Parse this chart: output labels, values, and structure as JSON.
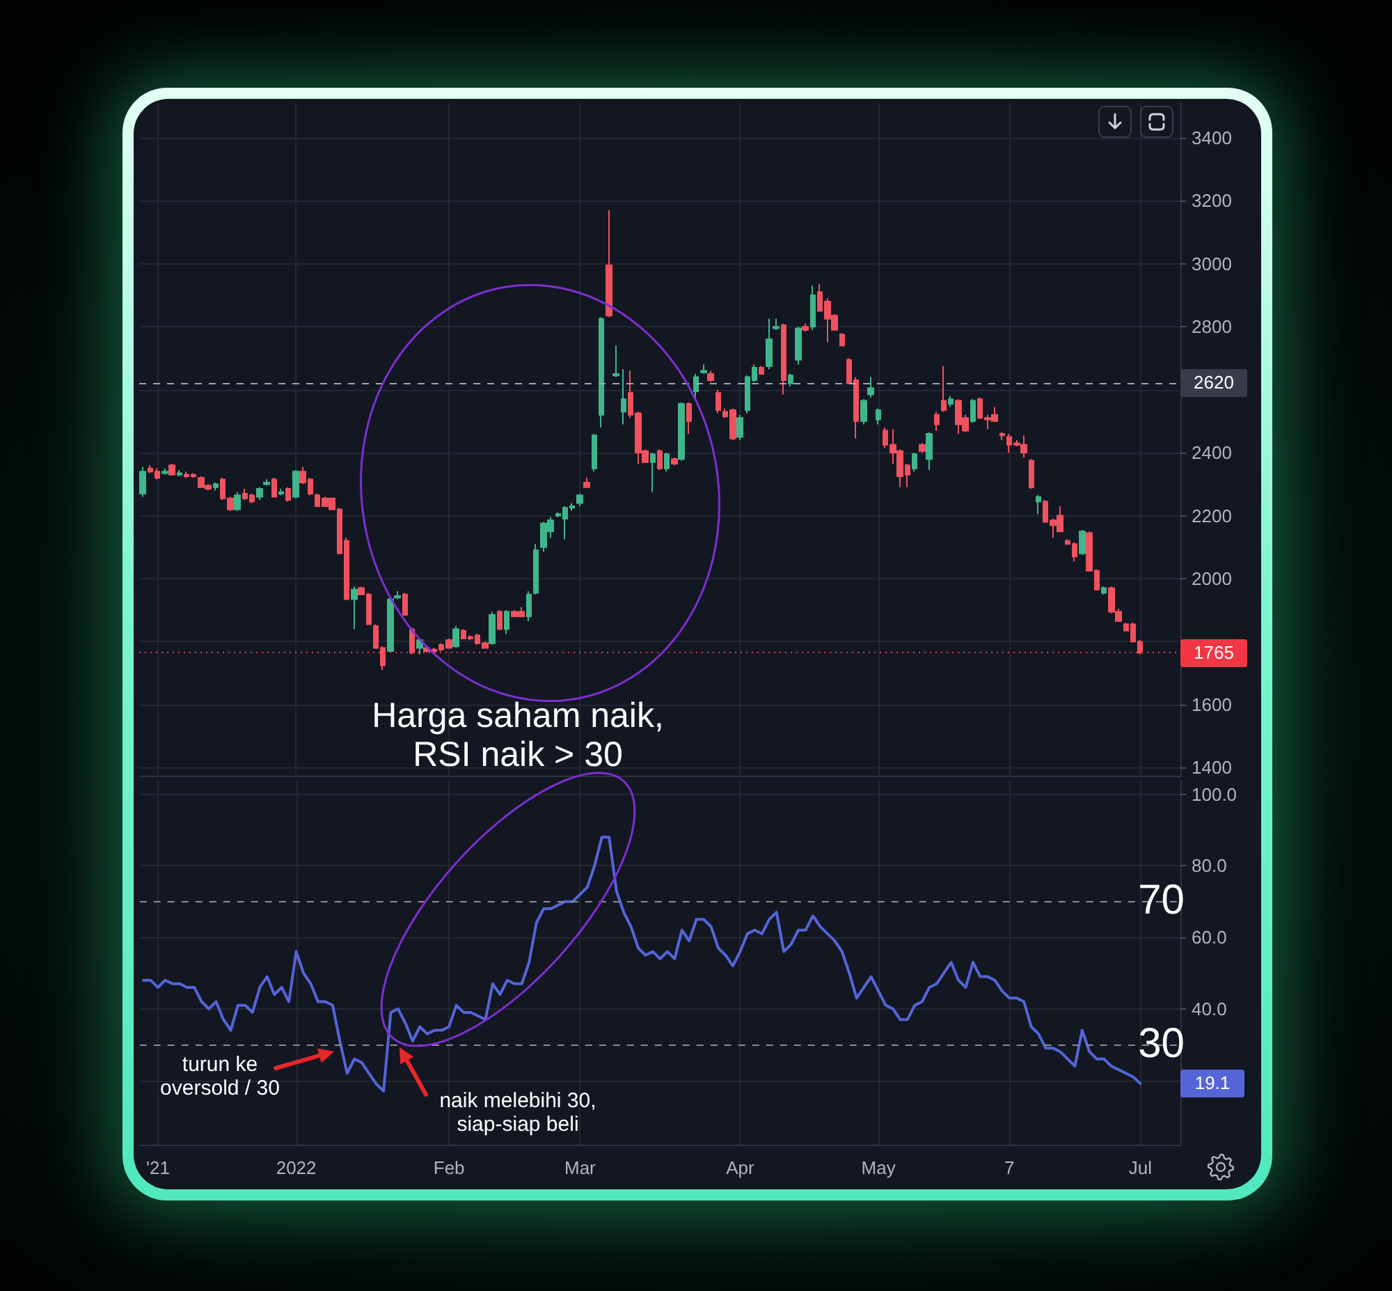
{
  "chart_data": [
    {
      "type": "candlestick",
      "categories": [
        null,
        null,
        null,
        null,
        null,
        null,
        null,
        null,
        null,
        null,
        null,
        null,
        null,
        null,
        null,
        null,
        null,
        null,
        null,
        null,
        null,
        null,
        null,
        null,
        null,
        null,
        null,
        null,
        null,
        null,
        null,
        null,
        null,
        null,
        null,
        null,
        null,
        null,
        null,
        null,
        null,
        null,
        null,
        null,
        null,
        null,
        null,
        null,
        null,
        null,
        null,
        null,
        null,
        null,
        null,
        null,
        null,
        null,
        null,
        null,
        null,
        null,
        null,
        null,
        null,
        null,
        null,
        null,
        null,
        null,
        null,
        null,
        null,
        null,
        null,
        null,
        null,
        null,
        null,
        null,
        null,
        null,
        null,
        null,
        null,
        null,
        null,
        null,
        null,
        null,
        null,
        null,
        null,
        null,
        null,
        null,
        null,
        null,
        null,
        null,
        null,
        null,
        null,
        null,
        null,
        null,
        null,
        null,
        null,
        null,
        null,
        null,
        null,
        null,
        null,
        null,
        null,
        null,
        null,
        null,
        null,
        null,
        null,
        null,
        null,
        null,
        null,
        null,
        null,
        null,
        null,
        null,
        null,
        null,
        null,
        null,
        null,
        null,
        null,
        null,
        null,
        null,
        null
      ],
      "ohlc": [
        [
          2270,
          2355,
          2260,
          2340
        ],
        [
          2350,
          2360,
          2335,
          2340
        ],
        [
          2340,
          2350,
          2315,
          2320
        ],
        [
          2335,
          2350,
          2330,
          2340
        ],
        [
          2360,
          2365,
          2330,
          2330
        ],
        [
          2330,
          2345,
          2325,
          2335
        ],
        [
          2330,
          2340,
          2320,
          2325
        ],
        [
          2330,
          2335,
          2320,
          2325
        ],
        [
          2320,
          2325,
          2290,
          2290
        ],
        [
          2295,
          2300,
          2280,
          2285
        ],
        [
          2290,
          2305,
          2280,
          2300
        ],
        [
          2315,
          2320,
          2250,
          2255
        ],
        [
          2255,
          2260,
          2215,
          2220
        ],
        [
          2220,
          2275,
          2215,
          2265
        ],
        [
          2270,
          2285,
          2250,
          2255
        ],
        [
          2265,
          2270,
          2240,
          2245
        ],
        [
          2260,
          2290,
          2250,
          2285
        ],
        [
          2300,
          2315,
          2295,
          2305
        ],
        [
          2315,
          2320,
          2260,
          2260
        ],
        [
          2270,
          2285,
          2265,
          2275
        ],
        [
          2285,
          2290,
          2245,
          2250
        ],
        [
          2260,
          2345,
          2255,
          2340
        ],
        [
          2340,
          2355,
          2300,
          2305
        ],
        [
          2315,
          2320,
          2265,
          2270
        ],
        [
          2265,
          2270,
          2230,
          2230
        ],
        [
          2255,
          2260,
          2230,
          2230
        ],
        [
          2255,
          2255,
          2220,
          2220
        ],
        [
          2220,
          2225,
          2080,
          2080
        ],
        [
          2120,
          2130,
          1935,
          1935
        ],
        [
          1935,
          1975,
          1840,
          1965
        ],
        [
          1970,
          1975,
          1950,
          1950
        ],
        [
          1950,
          1955,
          1855,
          1855
        ],
        [
          1850,
          1855,
          1780,
          1780
        ],
        [
          1780,
          1785,
          1710,
          1725
        ],
        [
          1770,
          1940,
          1765,
          1935
        ],
        [
          1940,
          1960,
          1935,
          1945
        ],
        [
          1950,
          1955,
          1885,
          1885
        ],
        [
          1840,
          1845,
          1760,
          1765
        ],
        [
          1780,
          1810,
          1760,
          1805
        ],
        [
          1780,
          1785,
          1765,
          1770
        ],
        [
          1775,
          1780,
          1765,
          1770
        ],
        [
          1790,
          1795,
          1770,
          1775
        ],
        [
          1805,
          1810,
          1780,
          1780
        ],
        [
          1785,
          1850,
          1780,
          1840
        ],
        [
          1835,
          1840,
          1810,
          1810
        ],
        [
          1815,
          1820,
          1805,
          1810
        ],
        [
          1820,
          1825,
          1790,
          1795
        ],
        [
          1795,
          1800,
          1780,
          1780
        ],
        [
          1795,
          1895,
          1790,
          1885
        ],
        [
          1895,
          1900,
          1840,
          1840
        ],
        [
          1840,
          1900,
          1825,
          1895
        ],
        [
          1895,
          1900,
          1880,
          1880
        ],
        [
          1895,
          1910,
          1880,
          1880
        ],
        [
          1880,
          1960,
          1865,
          1950
        ],
        [
          1955,
          2110,
          1950,
          2090
        ],
        [
          2100,
          2180,
          2085,
          2175
        ],
        [
          2150,
          2195,
          2130,
          2185
        ],
        [
          2200,
          2210,
          2195,
          2205
        ],
        [
          2190,
          2230,
          2125,
          2225
        ],
        [
          2225,
          2240,
          2215,
          2230
        ],
        [
          2240,
          2270,
          2230,
          2265
        ],
        [
          2305,
          2320,
          2290,
          2290
        ],
        [
          2350,
          2460,
          2340,
          2455
        ],
        [
          2520,
          2830,
          2480,
          2825
        ],
        [
          2995,
          3170,
          2830,
          2835
        ],
        [
          2645,
          2740,
          2640,
          2650
        ],
        [
          2530,
          2665,
          2490,
          2570
        ],
        [
          2590,
          2660,
          2510,
          2520
        ],
        [
          2525,
          2530,
          2365,
          2400
        ],
        [
          2405,
          2410,
          2370,
          2370
        ],
        [
          2370,
          2400,
          2275,
          2395
        ],
        [
          2405,
          2410,
          2345,
          2350
        ],
        [
          2350,
          2400,
          2340,
          2395
        ],
        [
          2380,
          2385,
          2360,
          2365
        ],
        [
          2380,
          2560,
          2375,
          2555
        ],
        [
          2555,
          2560,
          2460,
          2500
        ],
        [
          2595,
          2650,
          2570,
          2640
        ],
        [
          2655,
          2680,
          2650,
          2660
        ],
        [
          2650,
          2660,
          2625,
          2630
        ],
        [
          2590,
          2600,
          2525,
          2535
        ],
        [
          2530,
          2540,
          2510,
          2515
        ],
        [
          2535,
          2540,
          2440,
          2445
        ],
        [
          2450,
          2520,
          2440,
          2510
        ],
        [
          2535,
          2645,
          2525,
          2640
        ],
        [
          2630,
          2680,
          2625,
          2670
        ],
        [
          2670,
          2675,
          2650,
          2650
        ],
        [
          2675,
          2825,
          2665,
          2760
        ],
        [
          2795,
          2825,
          2790,
          2800
        ],
        [
          2805,
          2810,
          2585,
          2630
        ],
        [
          2620,
          2650,
          2610,
          2645
        ],
        [
          2695,
          2800,
          2680,
          2795
        ],
        [
          2800,
          2810,
          2785,
          2790
        ],
        [
          2800,
          2930,
          2790,
          2900
        ],
        [
          2910,
          2935,
          2850,
          2850
        ],
        [
          2880,
          2890,
          2750,
          2825
        ],
        [
          2835,
          2840,
          2790,
          2790
        ],
        [
          2775,
          2780,
          2740,
          2740
        ],
        [
          2695,
          2700,
          2620,
          2620
        ],
        [
          2630,
          2640,
          2445,
          2500
        ],
        [
          2500,
          2570,
          2490,
          2565
        ],
        [
          2585,
          2640,
          2575,
          2605
        ],
        [
          2505,
          2540,
          2490,
          2535
        ],
        [
          2470,
          2480,
          2415,
          2425
        ],
        [
          2425,
          2475,
          2365,
          2400
        ],
        [
          2405,
          2410,
          2290,
          2325
        ],
        [
          2360,
          2365,
          2290,
          2330
        ],
        [
          2350,
          2400,
          2340,
          2395
        ],
        [
          2425,
          2430,
          2400,
          2405
        ],
        [
          2380,
          2465,
          2345,
          2460
        ],
        [
          2520,
          2530,
          2470,
          2490
        ],
        [
          2565,
          2675,
          2530,
          2535
        ],
        [
          2555,
          2580,
          2545,
          2570
        ],
        [
          2565,
          2570,
          2460,
          2490
        ],
        [
          2510,
          2520,
          2465,
          2470
        ],
        [
          2500,
          2570,
          2495,
          2565
        ],
        [
          2570,
          2575,
          2510,
          2510
        ],
        [
          2510,
          2520,
          2475,
          2505
        ],
        [
          2520,
          2545,
          2500,
          2500
        ],
        [
          2460,
          2465,
          2440,
          2455
        ],
        [
          2450,
          2460,
          2400,
          2425
        ],
        [
          2430,
          2440,
          2420,
          2425
        ],
        [
          2425,
          2455,
          2385,
          2400
        ],
        [
          2375,
          2380,
          2285,
          2290
        ],
        [
          2245,
          2265,
          2205,
          2260
        ],
        [
          2245,
          2250,
          2180,
          2180
        ],
        [
          2185,
          2190,
          2130,
          2170
        ],
        [
          2200,
          2230,
          2150,
          2150
        ],
        [
          2120,
          2125,
          2110,
          2110
        ],
        [
          2110,
          2115,
          2055,
          2070
        ],
        [
          2080,
          2155,
          2075,
          2150
        ],
        [
          2145,
          2150,
          2025,
          2025
        ],
        [
          2025,
          2030,
          1965,
          1965
        ],
        [
          1955,
          1975,
          1950,
          1970
        ],
        [
          1970,
          1975,
          1890,
          1895
        ],
        [
          1895,
          1905,
          1865,
          1865
        ],
        [
          1855,
          1860,
          1835,
          1835
        ],
        [
          1855,
          1860,
          1800,
          1800
        ],
        [
          1800,
          1805,
          1760,
          1765
        ],
        null,
        null,
        null,
        null,
        null
      ],
      "colors": [
        "#3fb68b",
        "#f0525f",
        "#f0525f",
        "#3fb68b",
        "#f0525f",
        "#3fb68b",
        "#f0525f",
        "#f0525f",
        "#f0525f",
        "#f0525f",
        "#3fb68b",
        "#f0525f",
        "#f0525f",
        "#3fb68b",
        "#f0525f",
        "#f0525f",
        "#3fb68b",
        "#3fb68b",
        "#f0525f",
        "#3fb68b",
        "#f0525f",
        "#3fb68b",
        "#f0525f",
        "#f0525f",
        "#f0525f",
        "#f0525f",
        "#f0525f",
        "#f0525f",
        "#f0525f",
        "#3fb68b",
        "#f0525f",
        "#f0525f",
        "#f0525f",
        "#f0525f",
        "#3fb68b",
        "#3fb68b",
        "#f0525f",
        "#f0525f",
        "#3fb68b",
        "#f0525f",
        "#f0525f",
        "#f0525f",
        "#f0525f",
        "#3fb68b",
        "#f0525f",
        "#f0525f",
        "#f0525f",
        "#f0525f",
        "#3fb68b",
        "#f0525f",
        "#3fb68b",
        "#f0525f",
        "#f0525f",
        "#3fb68b",
        "#3fb68b",
        "#3fb68b",
        "#3fb68b",
        "#3fb68b",
        "#3fb68b",
        "#3fb68b",
        "#3fb68b",
        "#f0525f",
        "#3fb68b",
        "#3fb68b",
        "#f0525f",
        "#3fb68b",
        "#3fb68b",
        "#f0525f",
        "#f0525f",
        "#f0525f",
        "#3fb68b",
        "#f0525f",
        "#3fb68b",
        "#f0525f",
        "#3fb68b",
        "#f0525f",
        "#3fb68b",
        "#3fb68b",
        "#f0525f",
        "#f0525f",
        "#f0525f",
        "#f0525f",
        "#3fb68b",
        "#3fb68b",
        "#3fb68b",
        "#f0525f",
        "#3fb68b",
        "#3fb68b",
        "#f0525f",
        "#3fb68b",
        "#3fb68b",
        "#f0525f",
        "#3fb68b",
        "#f0525f",
        "#f0525f",
        "#f0525f",
        "#f0525f",
        "#f0525f",
        "#f0525f",
        "#3fb68b",
        "#3fb68b",
        "#3fb68b",
        "#f0525f",
        "#f0525f",
        "#f0525f",
        "#f0525f",
        "#3fb68b",
        "#f0525f",
        "#3fb68b",
        "#f0525f",
        "#f0525f",
        "#3fb68b",
        "#f0525f",
        "#f0525f",
        "#3fb68b",
        "#f0525f",
        "#f0525f",
        "#f0525f",
        "#f0525f",
        "#f0525f",
        "#f0525f",
        "#f0525f",
        "#f0525f",
        "#3fb68b",
        "#f0525f",
        "#f0525f",
        "#f0525f",
        "#f0525f",
        "#f0525f",
        "#3fb68b",
        "#f0525f",
        "#f0525f",
        "#3fb68b",
        "#f0525f",
        "#f0525f",
        "#f0525f",
        "#f0525f",
        "#f0525f",
        null,
        null,
        null,
        null,
        null
      ],
      "ylim": [
        1370,
        3510
      ],
      "yticks": [
        1400,
        1600,
        {
          "value": 1800,
          "label": null
        },
        2000,
        2200,
        2400,
        {
          "value": 2600,
          "label": null
        },
        2800,
        3000,
        3200,
        3400
      ],
      "ref_lines": [
        {
          "axis": "y",
          "value": 2620,
          "label": "2620",
          "color": "#a3a6af",
          "line_style": "dashed"
        },
        {
          "axis": "y",
          "value": 1765,
          "label": "1765",
          "color": "#f23645",
          "line_style": "dotted"
        }
      ],
      "annotations": [
        "Harga saham naik,\nRSI naik > 30"
      ],
      "grid": true,
      "tick_labels": "y"
    },
    {
      "type": "line",
      "categories": [
        null,
        null,
        "'21",
        null,
        null,
        null,
        null,
        null,
        null,
        null,
        null,
        null,
        null,
        null,
        null,
        null,
        null,
        null,
        null,
        null,
        null,
        "2022",
        null,
        null,
        null,
        null,
        null,
        null,
        null,
        null,
        null,
        null,
        null,
        null,
        null,
        null,
        null,
        null,
        null,
        null,
        null,
        null,
        "Feb",
        null,
        null,
        null,
        null,
        null,
        null,
        null,
        null,
        null,
        null,
        null,
        null,
        null,
        null,
        null,
        null,
        null,
        "Mar",
        null,
        null,
        null,
        null,
        null,
        null,
        null,
        null,
        null,
        null,
        null,
        null,
        null,
        null,
        null,
        null,
        null,
        null,
        null,
        null,
        null,
        "Apr",
        null,
        null,
        null,
        null,
        null,
        null,
        null,
        null,
        null,
        null,
        null,
        null,
        null,
        null,
        null,
        null,
        null,
        null,
        "May",
        null,
        null,
        null,
        null,
        null,
        null,
        null,
        null,
        null,
        null,
        null,
        null,
        null,
        null,
        null,
        null,
        null,
        "7",
        null,
        null,
        null,
        null,
        null,
        null,
        null,
        null,
        null,
        null,
        null,
        null,
        null,
        null,
        null,
        null,
        null,
        "Jul",
        null,
        null,
        null,
        null,
        null
      ],
      "values": [
        48,
        48,
        46,
        48,
        47,
        47,
        46,
        46,
        42,
        40,
        42,
        37,
        34,
        41,
        41,
        39,
        46,
        49,
        44,
        46,
        42,
        56,
        50,
        47,
        42,
        42,
        41,
        31,
        22,
        26,
        25,
        22,
        19,
        17,
        39,
        40,
        36,
        31,
        35,
        33,
        34,
        34,
        35,
        41,
        39,
        39,
        38,
        37,
        47,
        44,
        48,
        47,
        47,
        53,
        64,
        68,
        68,
        69,
        70,
        70,
        72,
        74,
        80,
        88,
        88,
        73,
        67,
        63,
        57,
        55,
        56,
        54,
        56,
        54,
        62,
        59,
        65,
        65,
        63,
        57,
        55,
        52,
        56,
        61,
        62,
        61,
        65,
        67,
        56,
        58,
        62,
        62,
        66,
        63,
        61,
        59,
        56,
        50,
        43,
        46,
        49,
        45,
        41,
        40,
        37,
        37,
        41,
        42,
        46,
        47,
        50,
        53,
        48,
        46,
        53,
        49,
        49,
        48,
        45,
        43,
        43,
        42,
        35,
        33,
        29,
        29,
        28,
        26,
        24,
        34,
        28,
        26,
        26,
        24,
        23,
        22,
        21,
        19.1,
        null,
        null,
        null,
        null,
        null
      ],
      "color": "#5565d8",
      "ylim": [
        2,
        104
      ],
      "yticks": [
        {
          "value": 20,
          "label": null
        },
        {
          "value": 40,
          "label": "40.0"
        },
        {
          "value": 60,
          "label": "60.0"
        },
        {
          "value": 80,
          "label": "80.0"
        },
        {
          "value": 100,
          "label": "100.0"
        }
      ],
      "ref_lines": [
        {
          "axis": "y",
          "value": 70,
          "label": "70",
          "color": "#8b8e97",
          "line_style": "dashed"
        },
        {
          "axis": "y",
          "value": 30,
          "label": "30",
          "color": "#8b8e97",
          "line_style": "dashed"
        }
      ],
      "annotations": [
        "turun ke\noversold / 30",
        "naik melebihi 30,\nsiap-siap beli",
        "19.1"
      ],
      "grid": true,
      "marker": "none"
    }
  ]
}
